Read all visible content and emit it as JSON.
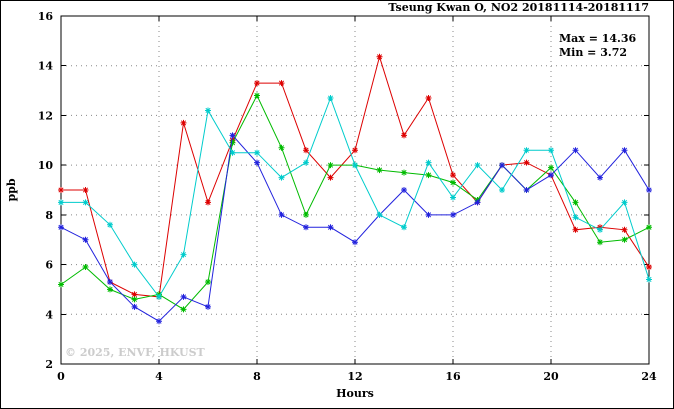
{
  "chart_data": {
    "type": "line",
    "title": "Tseung Kwan O, NO2 20181114-20181117",
    "xlabel": "Hours",
    "ylabel": "ppb",
    "xlim": [
      0,
      24
    ],
    "ylim": [
      2,
      16
    ],
    "xticks": [
      0,
      4,
      8,
      12,
      16,
      20,
      24
    ],
    "yticks": [
      2,
      4,
      6,
      8,
      10,
      12,
      14,
      16
    ],
    "grid": true,
    "legend": "none",
    "annotations": {
      "max_label": "Max = 14.36",
      "min_label": "Min =  3.72"
    },
    "watermark": "© 2025, ENVF, HKUST",
    "x": [
      0,
      1,
      2,
      3,
      4,
      5,
      6,
      7,
      8,
      9,
      10,
      11,
      12,
      13,
      14,
      15,
      16,
      17,
      18,
      19,
      20,
      21,
      22,
      23,
      24
    ],
    "series": [
      {
        "name": "series-red",
        "color": "#dd0000",
        "values": [
          9.0,
          9.0,
          5.3,
          4.8,
          4.7,
          11.7,
          8.5,
          11.0,
          13.3,
          13.3,
          10.6,
          9.5,
          10.6,
          14.36,
          11.2,
          12.7,
          9.6,
          8.5,
          10.0,
          10.1,
          9.6,
          7.4,
          7.5,
          7.4,
          5.9
        ]
      },
      {
        "name": "series-green",
        "color": "#00bb00",
        "values": [
          5.2,
          5.9,
          5.0,
          4.6,
          4.8,
          4.2,
          5.3,
          10.9,
          12.8,
          10.7,
          8.0,
          10.0,
          10.0,
          9.8,
          9.7,
          9.6,
          9.3,
          8.6,
          10.0,
          9.0,
          9.9,
          8.5,
          6.9,
          7.0,
          7.5
        ]
      },
      {
        "name": "series-blue",
        "color": "#2222dd",
        "values": [
          7.5,
          7.0,
          5.3,
          4.3,
          3.72,
          4.7,
          4.3,
          11.2,
          10.1,
          8.0,
          7.5,
          7.5,
          6.9,
          8.0,
          9.0,
          8.0,
          8.0,
          8.5,
          10.0,
          9.0,
          9.6,
          10.6,
          9.5,
          10.6,
          9.0
        ]
      },
      {
        "name": "series-cyan",
        "color": "#00cccc",
        "values": [
          8.5,
          8.5,
          7.6,
          6.0,
          4.7,
          6.4,
          12.2,
          10.5,
          10.5,
          9.5,
          10.1,
          12.7,
          10.0,
          8.0,
          7.5,
          10.1,
          8.7,
          10.0,
          9.0,
          10.6,
          10.6,
          7.9,
          7.4,
          8.5,
          5.4
        ]
      }
    ]
  }
}
